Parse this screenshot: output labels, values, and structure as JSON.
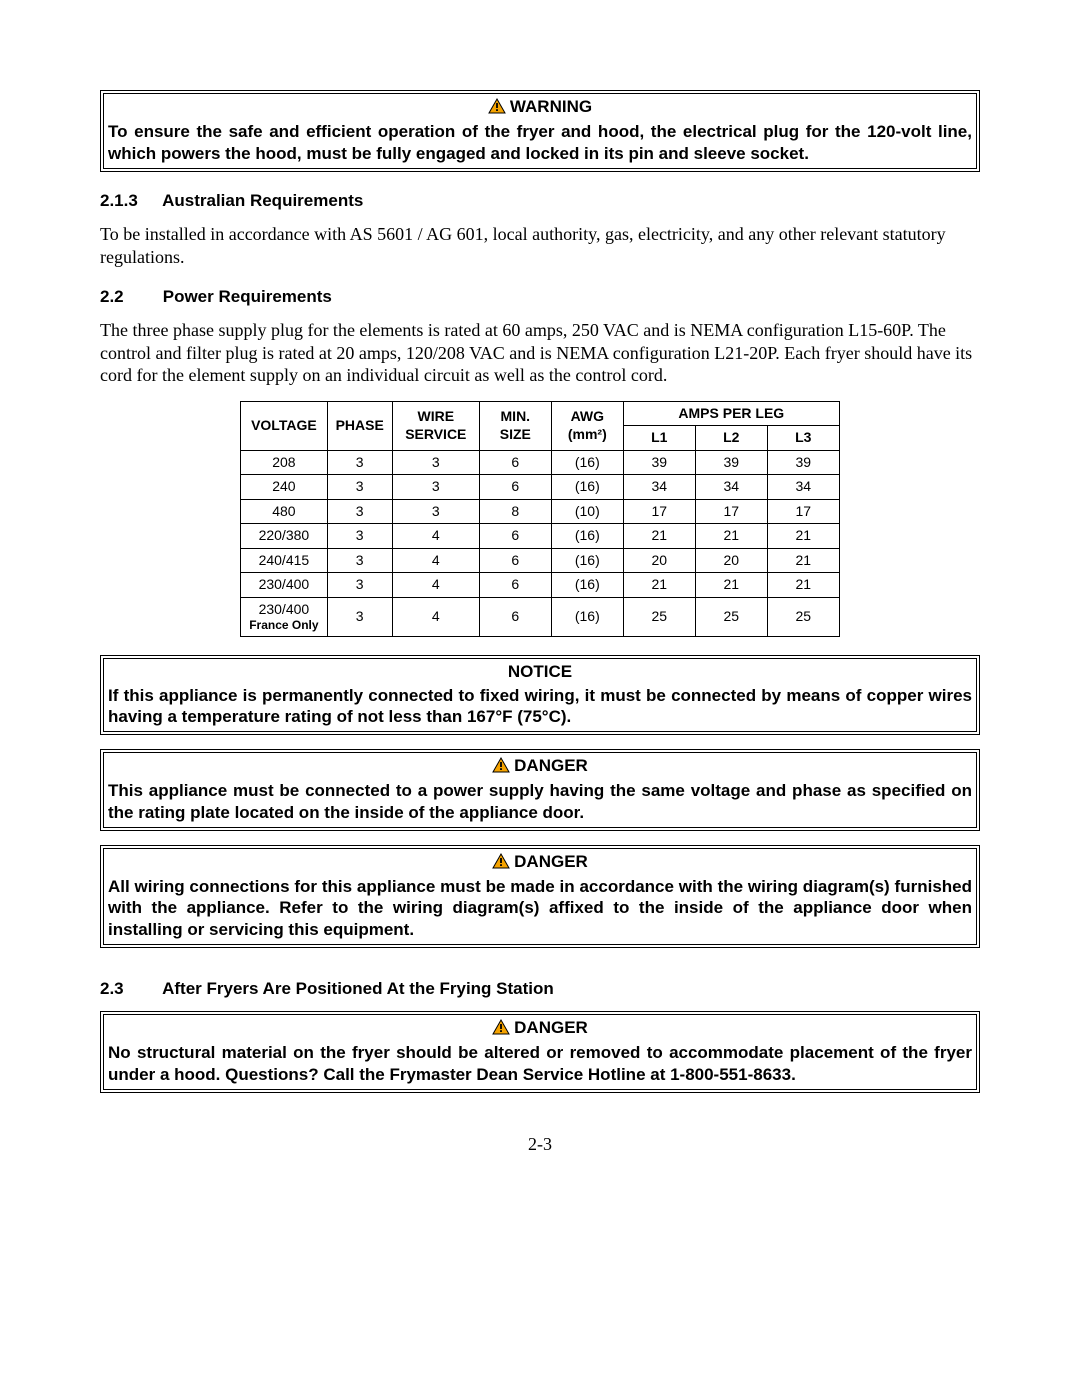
{
  "warning_box": {
    "title": "WARNING",
    "body": "To ensure the safe and efficient operation of the fryer and hood, the electrical plug for the 120-volt line, which powers the hood, must be fully engaged and locked in its pin and sleeve socket."
  },
  "sec_213": {
    "num": "2.1.3",
    "title": "Australian Requirements",
    "body": "To be installed in accordance with AS 5601 / AG 601, local authority, gas, electricity, and any other relevant statutory regulations."
  },
  "sec_22": {
    "num": "2.2",
    "title": "Power Requirements",
    "body": "The three phase supply plug for the elements is rated at 60 amps, 250 VAC and is NEMA configuration L15-60P.  The control and filter plug is rated at 20 amps, 120/208 VAC and is NEMA configuration L21-20P.  Each fryer should have its cord for the element supply on an individual circuit as well as the control cord."
  },
  "power_table": {
    "headers": {
      "voltage": "VOLTAGE",
      "phase": "PHASE",
      "wire_service": "WIRE SERVICE",
      "min_size": "MIN. SIZE",
      "awg": "AWG (mm²)",
      "amps_per_leg": "AMPS PER LEG",
      "l1": "L1",
      "l2": "L2",
      "l3": "L3"
    },
    "rows": [
      {
        "voltage": "208",
        "sub": "",
        "phase": "3",
        "wire": "3",
        "minsize": "6",
        "awg": "(16)",
        "l1": "39",
        "l2": "39",
        "l3": "39"
      },
      {
        "voltage": "240",
        "sub": "",
        "phase": "3",
        "wire": "3",
        "minsize": "6",
        "awg": "(16)",
        "l1": "34",
        "l2": "34",
        "l3": "34"
      },
      {
        "voltage": "480",
        "sub": "",
        "phase": "3",
        "wire": "3",
        "minsize": "8",
        "awg": "(10)",
        "l1": "17",
        "l2": "17",
        "l3": "17"
      },
      {
        "voltage": "220/380",
        "sub": "",
        "phase": "3",
        "wire": "4",
        "minsize": "6",
        "awg": "(16)",
        "l1": "21",
        "l2": "21",
        "l3": "21"
      },
      {
        "voltage": "240/415",
        "sub": "",
        "phase": "3",
        "wire": "4",
        "minsize": "6",
        "awg": "(16)",
        "l1": "20",
        "l2": "20",
        "l3": "21"
      },
      {
        "voltage": "230/400",
        "sub": "",
        "phase": "3",
        "wire": "4",
        "minsize": "6",
        "awg": "(16)",
        "l1": "21",
        "l2": "21",
        "l3": "21"
      },
      {
        "voltage": "230/400",
        "sub": "France Only",
        "phase": "3",
        "wire": "4",
        "minsize": "6",
        "awg": "(16)",
        "l1": "25",
        "l2": "25",
        "l3": "25"
      }
    ]
  },
  "notice_box": {
    "title": "NOTICE",
    "body": "If this appliance is permanently connected to fixed wiring, it must be connected by means of copper wires having a temperature rating of not less than 167°F (75°C)."
  },
  "danger1_box": {
    "title": "DANGER",
    "body": "This appliance must be connected to a power supply having the same voltage and phase as specified on the rating plate located on the inside of the appliance door."
  },
  "danger2_box": {
    "title": "DANGER",
    "body": "All wiring connections for this appliance must be made in accordance with the wiring diagram(s) furnished with the appliance.  Refer to the wiring diagram(s) affixed to the inside of the appliance door when installing or servicing this equipment."
  },
  "sec_23": {
    "num": "2.3",
    "title": "After Fryers Are Positioned At the Frying Station"
  },
  "danger3_box": {
    "title": "DANGER",
    "body": "No structural material on the fryer should be altered or removed to accommodate placement of the fryer under a hood.  Questions?  Call the Frymaster Dean Service Hotline at 1-800-551-8633."
  },
  "page_number": "2-3",
  "icon_colors": {
    "triangle_fill": "#f5a300",
    "triangle_stroke": "#000000",
    "bang": "#000000"
  }
}
